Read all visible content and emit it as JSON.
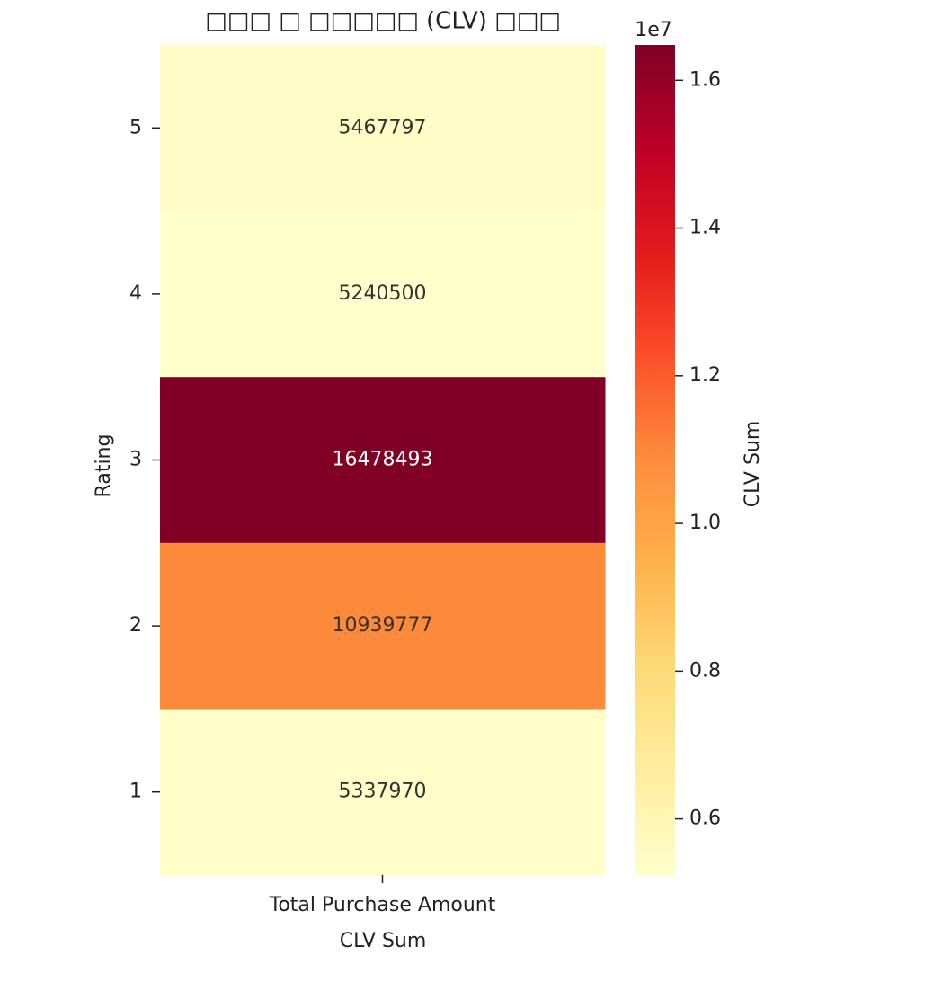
{
  "chart_data": {
    "type": "heatmap",
    "title": "□□□ □ □□□□□ (CLV) □□□",
    "xlabel": "CLV Sum",
    "ylabel": "Rating",
    "x_categories": [
      "Total Purchase Amount"
    ],
    "y_categories": [
      "5",
      "4",
      "3",
      "2",
      "1"
    ],
    "values": [
      [
        5467797
      ],
      [
        5240500
      ],
      [
        16478493
      ],
      [
        10939777
      ],
      [
        5337970
      ]
    ],
    "cmap": "YlOrRd",
    "colorbar": {
      "label": "CLV Sum",
      "offset_label": "1e7",
      "lim": [
        5240500,
        16478493
      ],
      "ticks": [
        {
          "value": 6000000,
          "label": "0.6"
        },
        {
          "value": 8000000,
          "label": "0.8"
        },
        {
          "value": 10000000,
          "label": "1.0"
        },
        {
          "value": 12000000,
          "label": "1.2"
        },
        {
          "value": 14000000,
          "label": "1.4"
        },
        {
          "value": 16000000,
          "label": "1.6"
        }
      ]
    }
  }
}
